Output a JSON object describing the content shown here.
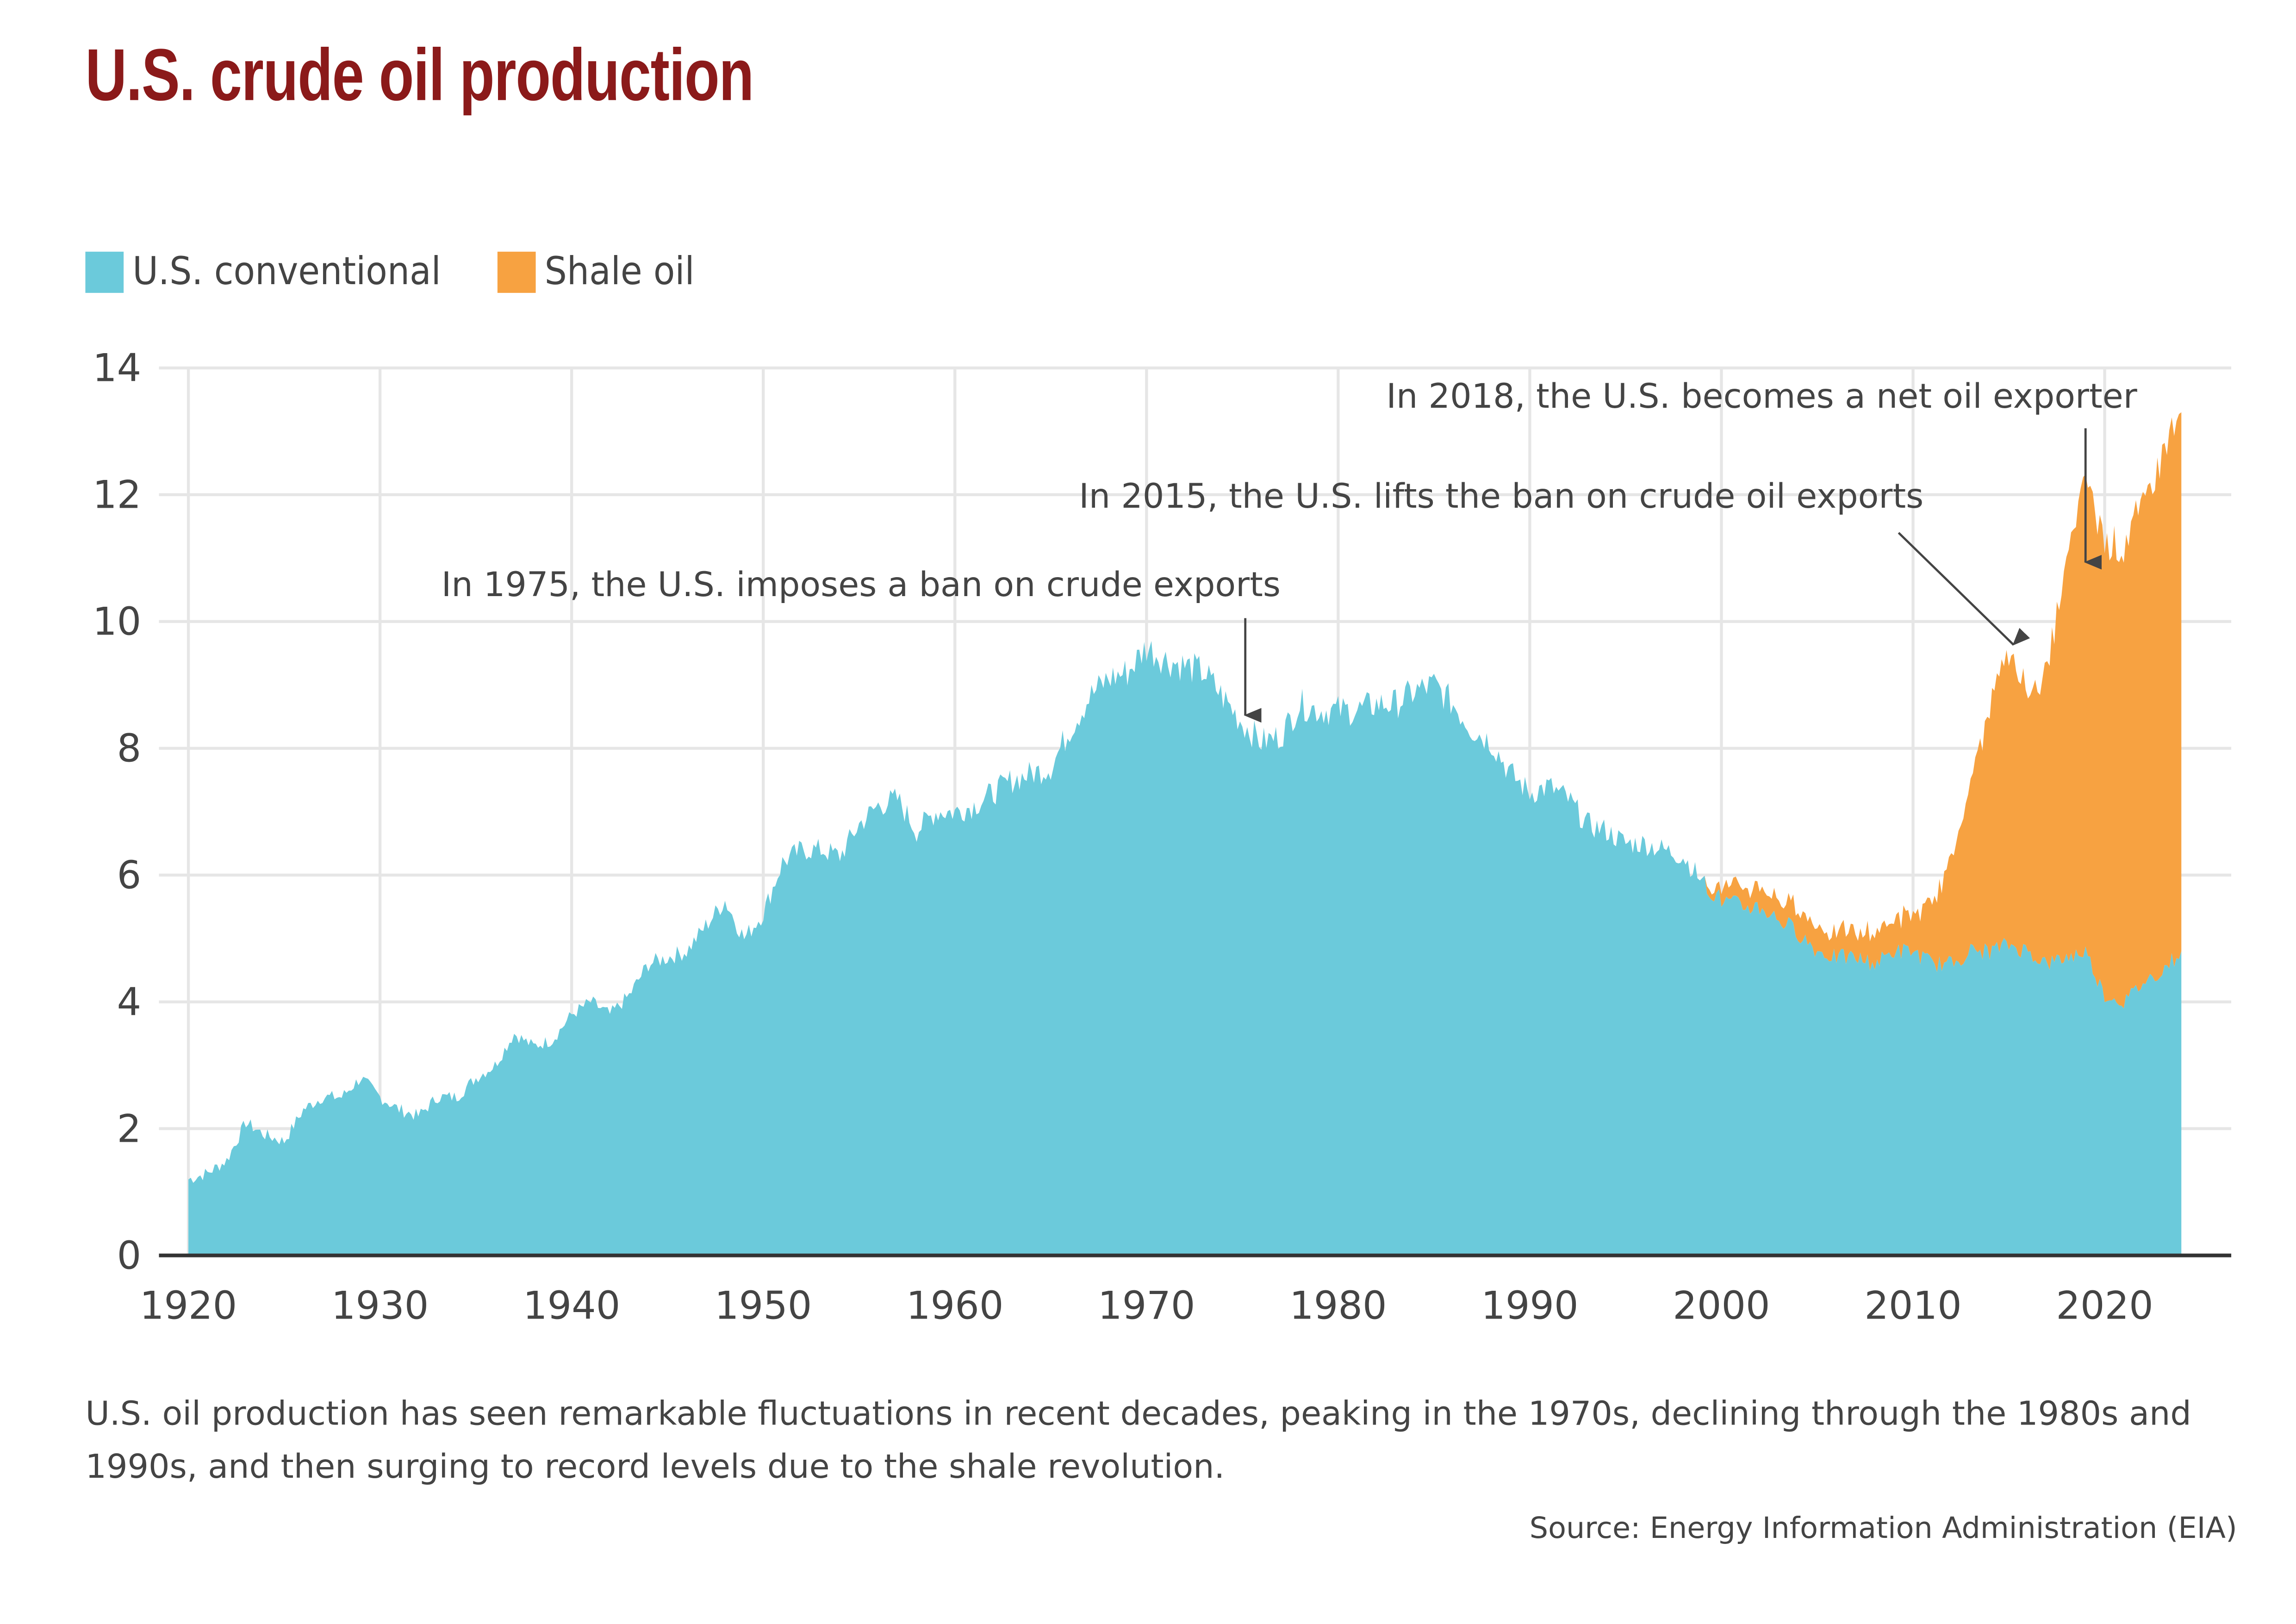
{
  "title": "U.S. crude oil production",
  "legend": [
    {
      "label": "U.S. conventional",
      "color": "#6bcadb"
    },
    {
      "label": "Shale oil",
      "color": "#f7a241"
    }
  ],
  "caption": "U.S. oil production has seen remarkable fluctuations in recent decades, peaking in the 1970s, declining through the 1980s and 1990s, and then surging to record levels due to the shale revolution.",
  "source": "Source: Energy Information Administration (EIA)",
  "annotations": [
    {
      "text": "In 1975, the U.S. imposes a ban on crude exports",
      "year": 1975
    },
    {
      "text": "In 2015, the U.S. lifts the ban on crude oil exports",
      "year": 2015
    },
    {
      "text": "In 2018, the U.S. becomes a net oil exporter",
      "year": 2018
    }
  ],
  "chart_data": {
    "type": "area",
    "stacked": true,
    "title": "U.S. crude oil production",
    "xlabel": "",
    "ylabel": "",
    "xlim": [
      1920,
      2024
    ],
    "ylim": [
      0,
      14
    ],
    "x_ticks": [
      "1920",
      "1930",
      "1940",
      "1950",
      "1960",
      "1970",
      "1980",
      "1990",
      "2000",
      "2010",
      "2020"
    ],
    "y_ticks": [
      "0",
      "2",
      "4",
      "6",
      "8",
      "10",
      "12",
      "14"
    ],
    "grid": true,
    "legend_position": "top-left",
    "x": [
      1920,
      1921,
      1922,
      1923,
      1924,
      1925,
      1926,
      1927,
      1928,
      1929,
      1930,
      1931,
      1932,
      1933,
      1934,
      1935,
      1936,
      1937,
      1938,
      1939,
      1940,
      1941,
      1942,
      1943,
      1944,
      1945,
      1946,
      1947,
      1948,
      1949,
      1950,
      1951,
      1952,
      1953,
      1954,
      1955,
      1956,
      1957,
      1958,
      1959,
      1960,
      1961,
      1962,
      1963,
      1964,
      1965,
      1966,
      1967,
      1968,
      1969,
      1970,
      1971,
      1972,
      1973,
      1974,
      1975,
      1976,
      1977,
      1978,
      1979,
      1980,
      1981,
      1982,
      1983,
      1984,
      1985,
      1986,
      1987,
      1988,
      1989,
      1990,
      1991,
      1992,
      1993,
      1994,
      1995,
      1996,
      1997,
      1998,
      1999,
      2000,
      2001,
      2002,
      2003,
      2004,
      2005,
      2006,
      2007,
      2008,
      2009,
      2010,
      2011,
      2012,
      2013,
      2014,
      2015,
      2016,
      2017,
      2018,
      2019,
      2020,
      2021,
      2022,
      2023,
      2024
    ],
    "series": [
      {
        "name": "U.S. conventional",
        "values": [
          1.2,
          1.3,
          1.5,
          2.1,
          1.9,
          1.8,
          2.3,
          2.5,
          2.5,
          2.8,
          2.5,
          2.3,
          2.2,
          2.5,
          2.5,
          2.8,
          3.0,
          3.5,
          3.3,
          3.4,
          3.8,
          4.0,
          3.8,
          4.1,
          4.6,
          4.7,
          4.8,
          5.2,
          5.6,
          5.0,
          5.4,
          6.2,
          6.4,
          6.4,
          6.3,
          6.8,
          7.1,
          7.2,
          6.7,
          7.0,
          7.0,
          7.1,
          7.3,
          7.5,
          7.6,
          7.7,
          8.3,
          8.8,
          9.1,
          9.2,
          9.6,
          9.4,
          9.3,
          9.2,
          8.8,
          8.4,
          8.1,
          8.2,
          8.7,
          8.6,
          8.6,
          8.6,
          8.7,
          8.7,
          8.9,
          9.0,
          8.7,
          8.3,
          8.1,
          7.6,
          7.3,
          7.4,
          7.2,
          6.8,
          6.7,
          6.5,
          6.5,
          6.4,
          6.3,
          5.9,
          5.6,
          5.5,
          5.5,
          5.3,
          5.1,
          4.8,
          4.7,
          4.7,
          4.6,
          4.8,
          4.8,
          4.6,
          4.6,
          4.8,
          4.8,
          4.9,
          4.8,
          4.6,
          4.7,
          4.8,
          4.1,
          4.0,
          4.3,
          4.5,
          4.8
        ]
      },
      {
        "name": "Shale oil",
        "values": [
          0,
          0,
          0,
          0,
          0,
          0,
          0,
          0,
          0,
          0,
          0,
          0,
          0,
          0,
          0,
          0,
          0,
          0,
          0,
          0,
          0,
          0,
          0,
          0,
          0,
          0,
          0,
          0,
          0,
          0,
          0,
          0,
          0,
          0,
          0,
          0,
          0,
          0,
          0,
          0,
          0,
          0,
          0,
          0,
          0,
          0,
          0,
          0,
          0,
          0,
          0,
          0,
          0,
          0,
          0,
          0,
          0,
          0,
          0,
          0,
          0,
          0,
          0,
          0,
          0,
          0,
          0,
          0,
          0,
          0,
          0,
          0,
          0,
          0,
          0,
          0,
          0,
          0,
          0,
          0,
          0.2,
          0.3,
          0.3,
          0.3,
          0.4,
          0.4,
          0.4,
          0.4,
          0.5,
          0.5,
          0.6,
          0.9,
          1.7,
          2.6,
          3.9,
          4.6,
          4.1,
          4.6,
          6.2,
          7.5,
          7.2,
          7.2,
          7.5,
          8.2,
          8.5
        ]
      }
    ]
  }
}
